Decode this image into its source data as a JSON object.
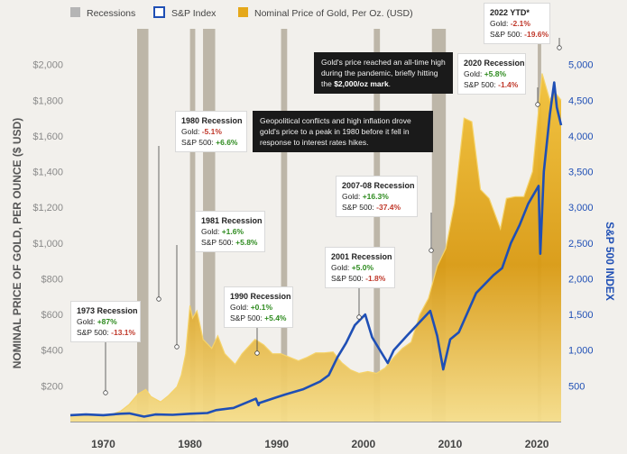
{
  "legend": {
    "recessions": "Recessions",
    "sp": "S&P Index",
    "gold": "Nominal Price of Gold, Per Oz. (USD)"
  },
  "colors": {
    "recession": "#b5b5b5",
    "sp": "#1f4fb5",
    "gold": "#d89c14",
    "gold_light": "#f5d36a",
    "positive": "#2e8b1f",
    "negative": "#c0392b"
  },
  "chart_data": {
    "type": "area",
    "title": "",
    "xlabel": "",
    "ylabel_left": "NOMINAL PRICE OF GOLD, PER OUNCE ($ USD)",
    "ylabel_right": "S&P 500 INDEX",
    "xlim": [
      1966.2,
      2022.8
    ],
    "ylim_left": [
      0,
      2200
    ],
    "ylim_right": [
      0,
      5500
    ],
    "x_ticks": [
      "1970",
      "1980",
      "1990",
      "2000",
      "2010",
      "2020"
    ],
    "y_ticks_left": [
      "$200",
      "$400",
      "$600",
      "$800",
      "$1,000",
      "$1,200",
      "$1,400",
      "$1,600",
      "$1,800",
      "$2,000"
    ],
    "y_ticks_right": [
      "500",
      "1,000",
      "1,500",
      "2,000",
      "2,500",
      "3,000",
      "3,500",
      "4,000",
      "4,500",
      "5,000"
    ],
    "recessions": [
      [
        1973.9,
        1975.2
      ],
      [
        1980.0,
        1980.6
      ],
      [
        1981.5,
        1982.9
      ],
      [
        1990.5,
        1991.2
      ],
      [
        2001.2,
        2001.9
      ],
      [
        2007.9,
        2009.5
      ],
      [
        2020.1,
        2020.5
      ]
    ],
    "series": [
      {
        "name": "Nominal Price of Gold, Per Oz. (USD)",
        "axis": "left",
        "x": [
          1966.2,
          1968,
          1970,
          1971,
          1972,
          1973,
          1974,
          1974.9,
          1975.5,
          1976.6,
          1977.5,
          1978.5,
          1979,
          1979.5,
          1980.0,
          1980.3,
          1980.8,
          1981.5,
          1982.5,
          1983.2,
          1984,
          1985.2,
          1986,
          1987.5,
          1988.5,
          1989.5,
          1990.5,
          1991.5,
          1992.5,
          1993.5,
          1994.5,
          1995.5,
          1996.5,
          1997.5,
          1998.5,
          1999.5,
          2000.5,
          2001.5,
          2002.5,
          2003.5,
          2004.5,
          2005.5,
          2006.5,
          2007.5,
          2008.5,
          2009.5,
          2010.5,
          2011.6,
          2012.5,
          2013.5,
          2014.5,
          2015.8,
          2016.5,
          2017.5,
          2018.5,
          2019.5,
          2020.6,
          2021.5,
          2022.0,
          2022.8
        ],
        "values": [
          35,
          38,
          36,
          41,
          58,
          97,
          155,
          180,
          140,
          110,
          145,
          195,
          260,
          380,
          650,
          580,
          620,
          460,
          410,
          480,
          380,
          320,
          380,
          460,
          430,
          380,
          380,
          360,
          340,
          360,
          385,
          385,
          390,
          330,
          290,
          270,
          280,
          270,
          300,
          360,
          410,
          445,
          600,
          690,
          870,
          970,
          1220,
          1700,
          1680,
          1300,
          1250,
          1080,
          1250,
          1260,
          1260,
          1400,
          1950,
          1800,
          1850,
          1800
        ]
      },
      {
        "name": "S&P Index",
        "axis": "right",
        "x": [
          1966.2,
          1968,
          1970,
          1972,
          1973,
          1974.7,
          1976,
          1978,
          1980,
          1982,
          1983,
          1985,
          1987.6,
          1987.9,
          1988,
          1990,
          1991,
          1993,
          1995,
          1996,
          1997,
          1998,
          1999,
          2000.2,
          2001,
          2002.8,
          2003.5,
          2005,
          2007.7,
          2008.5,
          2009.2,
          2010,
          2011,
          2013,
          2015,
          2016,
          2017,
          2018,
          2019,
          2020.2,
          2020.4,
          2020.8,
          2021.5,
          2022.0,
          2022.3,
          2022.8
        ],
        "values": [
          90,
          100,
          90,
          110,
          115,
          70,
          100,
          95,
          110,
          120,
          160,
          190,
          320,
          230,
          260,
          340,
          380,
          450,
          560,
          650,
          900,
          1100,
          1350,
          1500,
          1180,
          820,
          1000,
          1200,
          1550,
          1200,
          730,
          1150,
          1250,
          1800,
          2050,
          2150,
          2500,
          2750,
          3050,
          3300,
          2350,
          3500,
          4300,
          4750,
          4400,
          4150
        ]
      }
    ]
  },
  "annotations": {
    "r1973": {
      "title": "1973 Recession",
      "gold_label": "Gold:",
      "gold_val": "+87%",
      "sp_label": "S&P 500:",
      "sp_val": "-13.1%"
    },
    "r1980": {
      "title": "1980 Recession",
      "gold_label": "Gold:",
      "gold_val": "-5.1%",
      "sp_label": "S&P 500:",
      "sp_val": "+6.6%"
    },
    "r1981": {
      "title": "1981 Recession",
      "gold_label": "Gold:",
      "gold_val": "+1.6%",
      "sp_label": "S&P 500:",
      "sp_val": "+5.8%"
    },
    "r1990": {
      "title": "1990 Recession",
      "gold_label": "Gold:",
      "gold_val": "+0.1%",
      "sp_label": "S&P 500:",
      "sp_val": "+5.4%"
    },
    "r2001": {
      "title": "2001 Recession",
      "gold_label": "Gold:",
      "gold_val": "+5.0%",
      "sp_label": "S&P 500:",
      "sp_val": "-1.8%"
    },
    "r2007": {
      "title": "2007-08 Recession",
      "gold_label": "Gold:",
      "gold_val": "+16.3%",
      "sp_label": "S&P 500:",
      "sp_val": "-37.4%"
    },
    "r2020": {
      "title": "2020 Recession",
      "gold_label": "Gold:",
      "gold_val": "+5.8%",
      "sp_label": "S&P 500:",
      "sp_val": "-1.4%"
    },
    "r2022": {
      "title": "2022 YTD*",
      "gold_label": "Gold:",
      "gold_val": "-2.1%",
      "sp_label": "S&P 500:",
      "sp_val": "-19.6%"
    },
    "note1980": {
      "text": "Geopolitical conflicts and high inflation drove gold's price to a peak in 1980 before it fell in response to interest rates hikes."
    },
    "note2020": {
      "text_before": "Gold's price reached an all-time high during the pandemic, briefly hitting the ",
      "bold": "$2,000/oz mark",
      "text_after": "."
    }
  }
}
